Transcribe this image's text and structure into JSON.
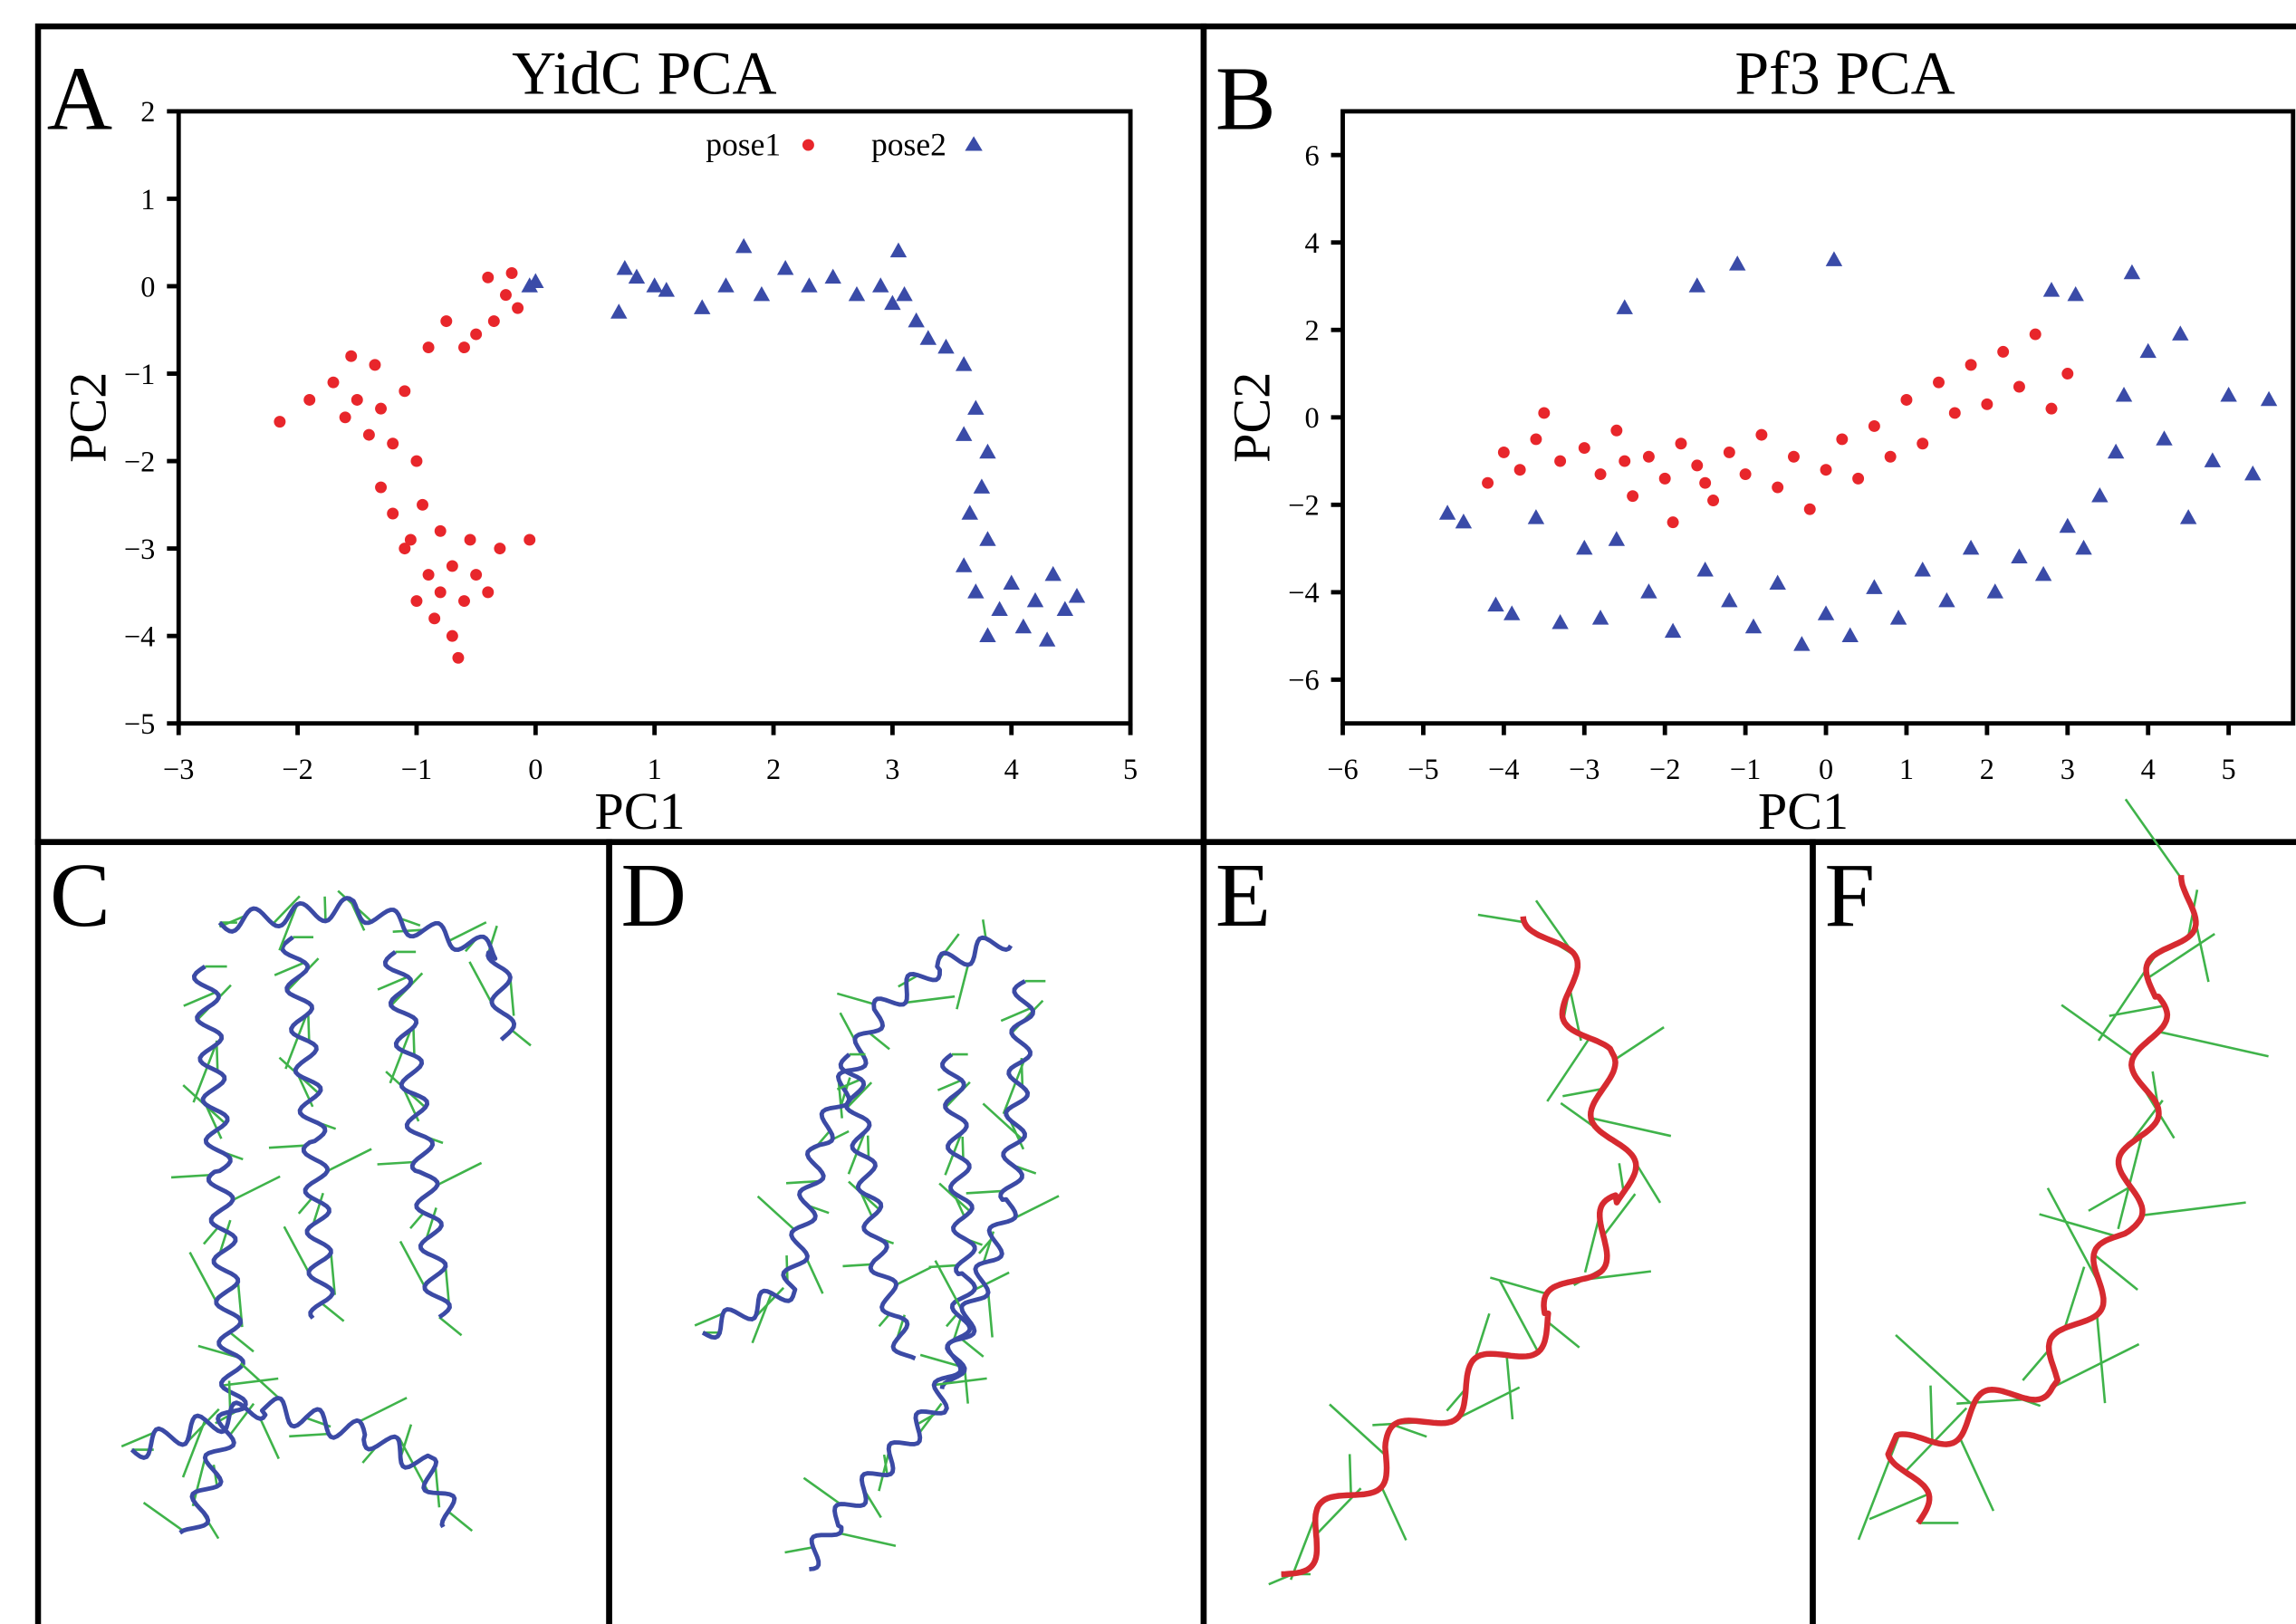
{
  "chart_data": [
    {
      "type": "scatter",
      "panel": "A",
      "title": "YidC PCA",
      "xlabel": "PC1",
      "ylabel": "PC2",
      "xlim": [
        -3,
        5
      ],
      "ylim": [
        -5,
        2
      ],
      "xticks": [
        {
          "value": -3,
          "label": "−3"
        },
        {
          "value": -2,
          "label": "−2"
        },
        {
          "value": -1,
          "label": "−1"
        },
        0,
        1,
        2,
        3,
        4,
        5
      ],
      "yticks": [
        {
          "value": -5,
          "label": "−5"
        },
        {
          "value": -4,
          "label": "−4"
        },
        {
          "value": -3,
          "label": "−3"
        },
        {
          "value": -2,
          "label": "−2"
        },
        {
          "value": -1,
          "label": "−1"
        },
        0,
        1,
        2
      ],
      "grid": false,
      "legend": "top-right",
      "series": [
        {
          "name": "pose1",
          "color": "#e8262b",
          "marker": "circle",
          "x": [
            -2.15,
            -1.9,
            -1.7,
            -1.6,
            -1.5,
            -1.4,
            -1.3,
            -1.2,
            -1.55,
            -1.35,
            -1.1,
            -1.0,
            -1.3,
            -1.2,
            -0.95,
            -1.1,
            -0.9,
            -0.8,
            -0.7,
            -0.6,
            -0.85,
            -1.0,
            -0.5,
            -0.4,
            -0.7,
            -0.65,
            -0.3,
            -0.05,
            -0.55,
            -0.8,
            -1.05,
            -0.5,
            -0.35,
            -0.25,
            -0.4,
            -0.2,
            -0.6,
            -0.9,
            -0.75,
            -0.15
          ],
          "values": [
            -1.55,
            -1.3,
            -1.1,
            -1.5,
            -1.3,
            -1.7,
            -1.4,
            -1.8,
            -0.8,
            -0.9,
            -1.2,
            -2.0,
            -2.3,
            -2.6,
            -2.5,
            -3.0,
            -3.3,
            -3.5,
            -3.2,
            -3.6,
            -3.8,
            -3.6,
            -3.3,
            -3.5,
            -4.0,
            -4.25,
            -3.0,
            -2.9,
            -2.9,
            -2.8,
            -2.9,
            -0.55,
            -0.4,
            -0.1,
            0.1,
            0.15,
            -0.7,
            -0.7,
            -0.4,
            -0.25
          ]
        },
        {
          "name": "pose2",
          "color": "#3a4ba8",
          "marker": "triangle",
          "x": [
            -0.05,
            0.0,
            0.7,
            0.75,
            0.85,
            1.0,
            1.1,
            1.4,
            1.6,
            1.75,
            1.9,
            2.1,
            2.3,
            2.5,
            2.7,
            2.9,
            3.0,
            3.05,
            3.1,
            3.2,
            3.3,
            3.45,
            3.6,
            3.7,
            3.6,
            3.8,
            3.75,
            3.65,
            3.8,
            3.6,
            3.7,
            3.9,
            4.0,
            4.1,
            4.2,
            4.35,
            4.45,
            4.55,
            4.3,
            3.8
          ],
          "values": [
            0.0,
            0.05,
            -0.3,
            0.2,
            0.1,
            0.0,
            -0.05,
            -0.25,
            0.0,
            0.45,
            -0.1,
            0.2,
            0.0,
            0.1,
            -0.1,
            0.0,
            -0.2,
            0.4,
            -0.1,
            -0.4,
            -0.6,
            -0.7,
            -0.9,
            -1.4,
            -1.7,
            -1.9,
            -2.3,
            -2.6,
            -2.9,
            -3.2,
            -3.5,
            -3.7,
            -3.4,
            -3.9,
            -3.6,
            -3.3,
            -3.7,
            -3.55,
            -4.05,
            -4.0
          ]
        }
      ]
    },
    {
      "type": "scatter",
      "panel": "B",
      "title": "Pf3 PCA",
      "xlabel": "PC1",
      "ylabel": "PC2",
      "xlim": [
        -6,
        5.8
      ],
      "ylim": [
        -7,
        7
      ],
      "xticks": [
        {
          "value": -6,
          "label": "−6"
        },
        {
          "value": -5,
          "label": "−5"
        },
        {
          "value": -4,
          "label": "−4"
        },
        {
          "value": -3,
          "label": "−3"
        },
        {
          "value": -2,
          "label": "−2"
        },
        {
          "value": -1,
          "label": "−1"
        },
        0,
        1,
        2,
        3,
        4,
        5
      ],
      "yticks": [
        {
          "value": -6,
          "label": "−6"
        },
        {
          "value": -4,
          "label": "−4"
        },
        {
          "value": -2,
          "label": "−2"
        },
        0,
        2,
        4,
        6
      ],
      "grid": false,
      "series": [
        {
          "color": "#e8262b",
          "marker": "circle",
          "x": [
            -4.2,
            -4.0,
            -3.8,
            -3.6,
            -3.5,
            -3.3,
            -3.0,
            -2.8,
            -2.6,
            -2.4,
            -2.2,
            -2.0,
            -1.9,
            -1.8,
            -1.6,
            -1.4,
            -1.2,
            -1.0,
            -0.8,
            -0.6,
            -0.4,
            -0.2,
            0.0,
            0.2,
            0.4,
            0.6,
            0.8,
            1.0,
            1.2,
            1.4,
            1.6,
            1.8,
            2.0,
            2.2,
            2.4,
            2.6,
            2.8,
            3.0,
            -1.5,
            -2.5
          ],
          "values": [
            -1.5,
            -0.8,
            -1.2,
            -0.5,
            0.1,
            -1.0,
            -0.7,
            -1.3,
            -0.3,
            -1.8,
            -0.9,
            -1.4,
            -2.4,
            -0.6,
            -1.1,
            -1.9,
            -0.8,
            -1.3,
            -0.4,
            -1.6,
            -0.9,
            -2.1,
            -1.2,
            -0.5,
            -1.4,
            -0.2,
            -0.9,
            0.4,
            -0.6,
            0.8,
            0.1,
            1.2,
            0.3,
            1.5,
            0.7,
            1.9,
            0.2,
            1.0,
            -1.5,
            -1.0
          ]
        },
        {
          "color": "#3a4ba8",
          "marker": "triangle",
          "x": [
            -4.7,
            -4.5,
            -4.1,
            -3.9,
            -3.6,
            -3.3,
            -3.0,
            -2.8,
            -2.5,
            -2.6,
            -2.2,
            -1.9,
            -1.6,
            -1.5,
            -1.2,
            -1.1,
            -0.9,
            -0.6,
            -0.3,
            0.1,
            0.0,
            0.3,
            0.6,
            0.9,
            1.2,
            1.5,
            1.8,
            2.1,
            2.4,
            2.7,
            3.0,
            3.2,
            3.4,
            3.6,
            3.7,
            3.8,
            4.0,
            4.2,
            4.5,
            4.8,
            5.0,
            5.3,
            5.5,
            3.1,
            2.8,
            4.4
          ],
          "values": [
            -2.2,
            -2.4,
            -4.3,
            -4.5,
            -2.3,
            -4.7,
            -3.0,
            -4.6,
            2.5,
            -2.8,
            -4.0,
            -4.9,
            3.0,
            -3.5,
            -4.2,
            3.5,
            -4.8,
            -3.8,
            -5.2,
            3.6,
            -4.5,
            -5.0,
            -3.9,
            -4.6,
            -3.5,
            -4.2,
            -3.0,
            -4.0,
            -3.2,
            -3.6,
            -2.5,
            -3.0,
            -1.8,
            -0.8,
            0.5,
            3.3,
            1.5,
            -0.5,
            -2.3,
            -1.0,
            0.5,
            -1.3,
            0.4,
            2.8,
            2.9,
            1.9
          ]
        }
      ]
    }
  ],
  "image_panels": [
    "C",
    "D",
    "E",
    "F"
  ]
}
